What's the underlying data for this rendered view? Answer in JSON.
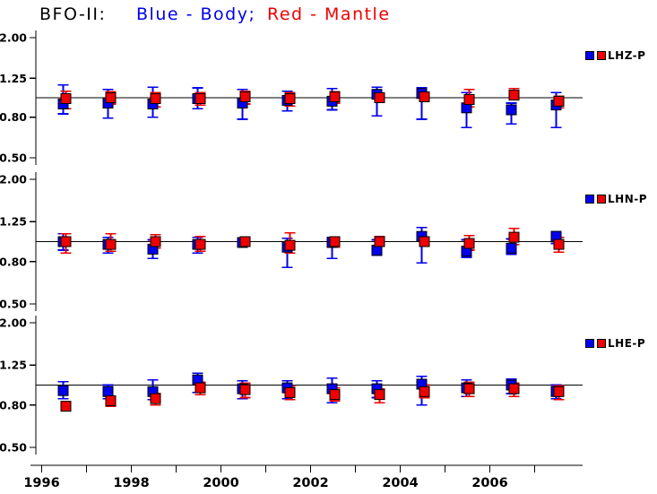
{
  "title": {
    "prefix": "BFO-II:",
    "body_label": "Blue - Body;",
    "mantle_label": "Red - Mantle"
  },
  "colors": {
    "body": "#0000ee",
    "mantle": "#ee0000",
    "axis": "#000000"
  },
  "axes": {
    "y_scale": "log",
    "y_tick_labels": [
      "2.00",
      "1.25",
      "0.80",
      "0.50"
    ],
    "y_tick_values": [
      2.0,
      1.25,
      0.8,
      0.5
    ],
    "reference_line": 1.0,
    "x_tick_years": [
      1996,
      1997,
      1998,
      1999,
      2000,
      2001,
      2002,
      2003,
      2004,
      2005,
      2006,
      2007
    ],
    "x_labeled_years": [
      "1996",
      "1998",
      "2000",
      "2002",
      "2004",
      "2006"
    ],
    "x_range": [
      1995.75,
      2008.1
    ]
  },
  "chart_data": [
    {
      "type": "scatter",
      "name": "LHZ-P",
      "yscale": "log",
      "ylim": [
        0.45,
        2.2
      ],
      "reference_line": 1.0,
      "x": [
        1996.5,
        1997.5,
        1998.5,
        1999.5,
        2000.5,
        2001.5,
        2002.5,
        2003.5,
        2004.5,
        2005.5,
        2006.5,
        2007.5
      ],
      "series": [
        {
          "name": "Body",
          "values": [
            0.93,
            0.94,
            0.93,
            0.99,
            0.94,
            0.97,
            0.96,
            1.04,
            1.05,
            0.89,
            0.87,
            0.92
          ],
          "err_lo": [
            0.83,
            0.79,
            0.8,
            0.88,
            0.78,
            0.86,
            0.87,
            0.81,
            0.78,
            0.71,
            0.74,
            0.71
          ],
          "err_hi": [
            1.16,
            1.1,
            1.13,
            1.12,
            1.1,
            1.08,
            1.11,
            1.13,
            1.12,
            1.06,
            0.94,
            1.06
          ]
        },
        {
          "name": "Mantle",
          "values": [
            0.99,
            1.0,
            0.99,
            0.99,
            1.01,
            0.99,
            1.01,
            1.0,
            1.01,
            0.98,
            1.03,
            0.96
          ],
          "err_lo": [
            0.88,
            0.93,
            0.9,
            0.92,
            0.93,
            0.91,
            0.94,
            0.95,
            0.96,
            0.9,
            0.99,
            0.89
          ],
          "err_hi": [
            1.08,
            1.07,
            1.06,
            1.06,
            1.08,
            1.06,
            1.07,
            1.05,
            1.06,
            1.1,
            1.11,
            1.02
          ]
        }
      ]
    },
    {
      "type": "scatter",
      "name": "LHN-P",
      "yscale": "log",
      "ylim": [
        0.45,
        2.2
      ],
      "reference_line": 1.0,
      "x": [
        1996.5,
        1997.5,
        1998.5,
        1999.5,
        2000.5,
        2001.5,
        2002.5,
        2003.5,
        2004.5,
        2005.5,
        2006.5,
        2007.5
      ],
      "series": [
        {
          "name": "Body",
          "values": [
            1.0,
            0.97,
            0.92,
            0.97,
            0.99,
            0.94,
            0.99,
            0.91,
            1.06,
            0.9,
            0.93,
            1.06
          ],
          "err_lo": [
            0.91,
            0.88,
            0.83,
            0.88,
            0.94,
            0.75,
            0.83,
            0.86,
            0.79,
            0.84,
            0.87,
            0.98
          ],
          "err_hi": [
            1.09,
            1.05,
            1.02,
            1.05,
            1.04,
            1.04,
            1.05,
            1.02,
            1.17,
            1.02,
            1.03,
            1.12
          ]
        },
        {
          "name": "Mantle",
          "values": [
            1.0,
            0.97,
            1.0,
            0.97,
            1.0,
            0.96,
            1.0,
            1.0,
            1.0,
            0.98,
            1.05,
            0.97
          ],
          "err_lo": [
            0.88,
            0.9,
            0.93,
            0.9,
            0.95,
            0.88,
            0.94,
            0.95,
            0.95,
            0.91,
            0.97,
            0.89
          ],
          "err_hi": [
            1.09,
            1.09,
            1.08,
            1.06,
            1.05,
            1.1,
            1.05,
            1.06,
            1.05,
            1.07,
            1.16,
            1.05
          ]
        }
      ]
    },
    {
      "type": "scatter",
      "name": "LHE-P",
      "yscale": "log",
      "ylim": [
        0.45,
        2.2
      ],
      "reference_line": 1.0,
      "x": [
        1996.5,
        1997.5,
        1998.5,
        1999.5,
        2000.5,
        2001.5,
        2002.5,
        2003.5,
        2004.5,
        2005.5,
        2006.5,
        2007.5
      ],
      "series": [
        {
          "name": "Body",
          "values": [
            0.94,
            0.93,
            0.93,
            1.06,
            0.96,
            0.97,
            0.96,
            0.96,
            1.01,
            0.97,
            1.0,
            0.93
          ],
          "err_lo": [
            0.86,
            0.86,
            0.85,
            0.92,
            0.86,
            0.86,
            0.82,
            0.87,
            0.8,
            0.88,
            0.91,
            0.86
          ],
          "err_hi": [
            1.04,
            1.0,
            1.06,
            1.14,
            1.05,
            1.05,
            1.08,
            1.05,
            1.1,
            1.06,
            1.07,
            1.0
          ]
        },
        {
          "name": "Mantle",
          "values": [
            0.79,
            0.84,
            0.86,
            0.97,
            0.95,
            0.92,
            0.9,
            0.9,
            0.93,
            0.96,
            0.96,
            0.93
          ],
          "err_lo": [
            0.75,
            0.79,
            0.8,
            0.9,
            0.87,
            0.85,
            0.84,
            0.82,
            0.87,
            0.88,
            0.88,
            0.85
          ],
          "err_hi": [
            0.83,
            0.88,
            0.91,
            1.03,
            1.02,
            0.99,
            0.97,
            0.96,
            1.0,
            1.03,
            1.02,
            0.99
          ]
        }
      ]
    }
  ]
}
